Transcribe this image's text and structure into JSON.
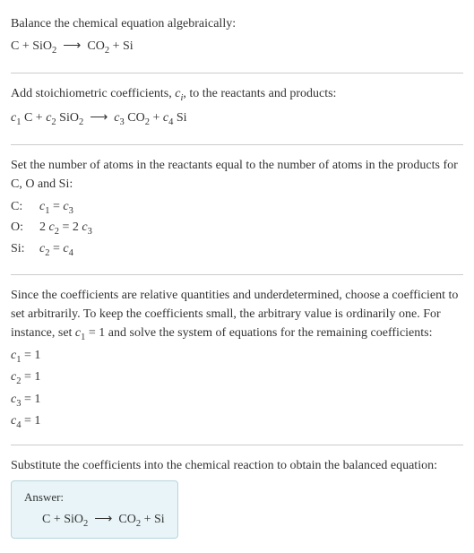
{
  "section1": {
    "title": "Balance the chemical equation algebraically:",
    "equation_html": "C + SiO<sub>2</sub>&nbsp;&nbsp;⟶&nbsp;&nbsp;CO<sub>2</sub> + Si"
  },
  "section2": {
    "text_html": "Add stoichiometric coefficients, <span class='italic'>c<sub>i</sub></span>, to the reactants and products:",
    "equation_html": "<span class='italic'>c</span><sub>1</sub> C + <span class='italic'>c</span><sub>2</sub> SiO<sub>2</sub>&nbsp;&nbsp;⟶&nbsp;&nbsp;<span class='italic'>c</span><sub>3</sub> CO<sub>2</sub> + <span class='italic'>c</span><sub>4</sub> Si"
  },
  "section3": {
    "text": "Set the number of atoms in the reactants equal to the number of atoms in the products for C, O and Si:",
    "rows": [
      {
        "label": "C:",
        "eq_html": "<span class='italic'>c</span><sub>1</sub> = <span class='italic'>c</span><sub>3</sub>"
      },
      {
        "label": "O:",
        "eq_html": "2 <span class='italic'>c</span><sub>2</sub> = 2 <span class='italic'>c</span><sub>3</sub>"
      },
      {
        "label": "Si:",
        "eq_html": "<span class='italic'>c</span><sub>2</sub> = <span class='italic'>c</span><sub>4</sub>"
      }
    ]
  },
  "section4": {
    "text_html": "Since the coefficients are relative quantities and underdetermined, choose a coefficient to set arbitrarily. To keep the coefficients small, the arbitrary value is ordinarily one. For instance, set <span class='italic'>c</span><sub>1</sub> = 1 and solve the system of equations for the remaining coefficients:",
    "coefs": [
      "<span class='italic'>c</span><sub>1</sub> = 1",
      "<span class='italic'>c</span><sub>2</sub> = 1",
      "<span class='italic'>c</span><sub>3</sub> = 1",
      "<span class='italic'>c</span><sub>4</sub> = 1"
    ]
  },
  "section5": {
    "text": "Substitute the coefficients into the chemical reaction to obtain the balanced equation:",
    "answer_label": "Answer:",
    "answer_eq_html": "C + SiO<sub>2</sub>&nbsp;&nbsp;⟶&nbsp;&nbsp;CO<sub>2</sub> + Si"
  },
  "style": {
    "body_bg": "#ffffff",
    "text_color": "#333333",
    "divider_color": "#cccccc",
    "answer_bg": "#e8f4f8",
    "answer_border": "#b8d4dd",
    "font_family": "Georgia, serif",
    "base_font_size": 14
  }
}
